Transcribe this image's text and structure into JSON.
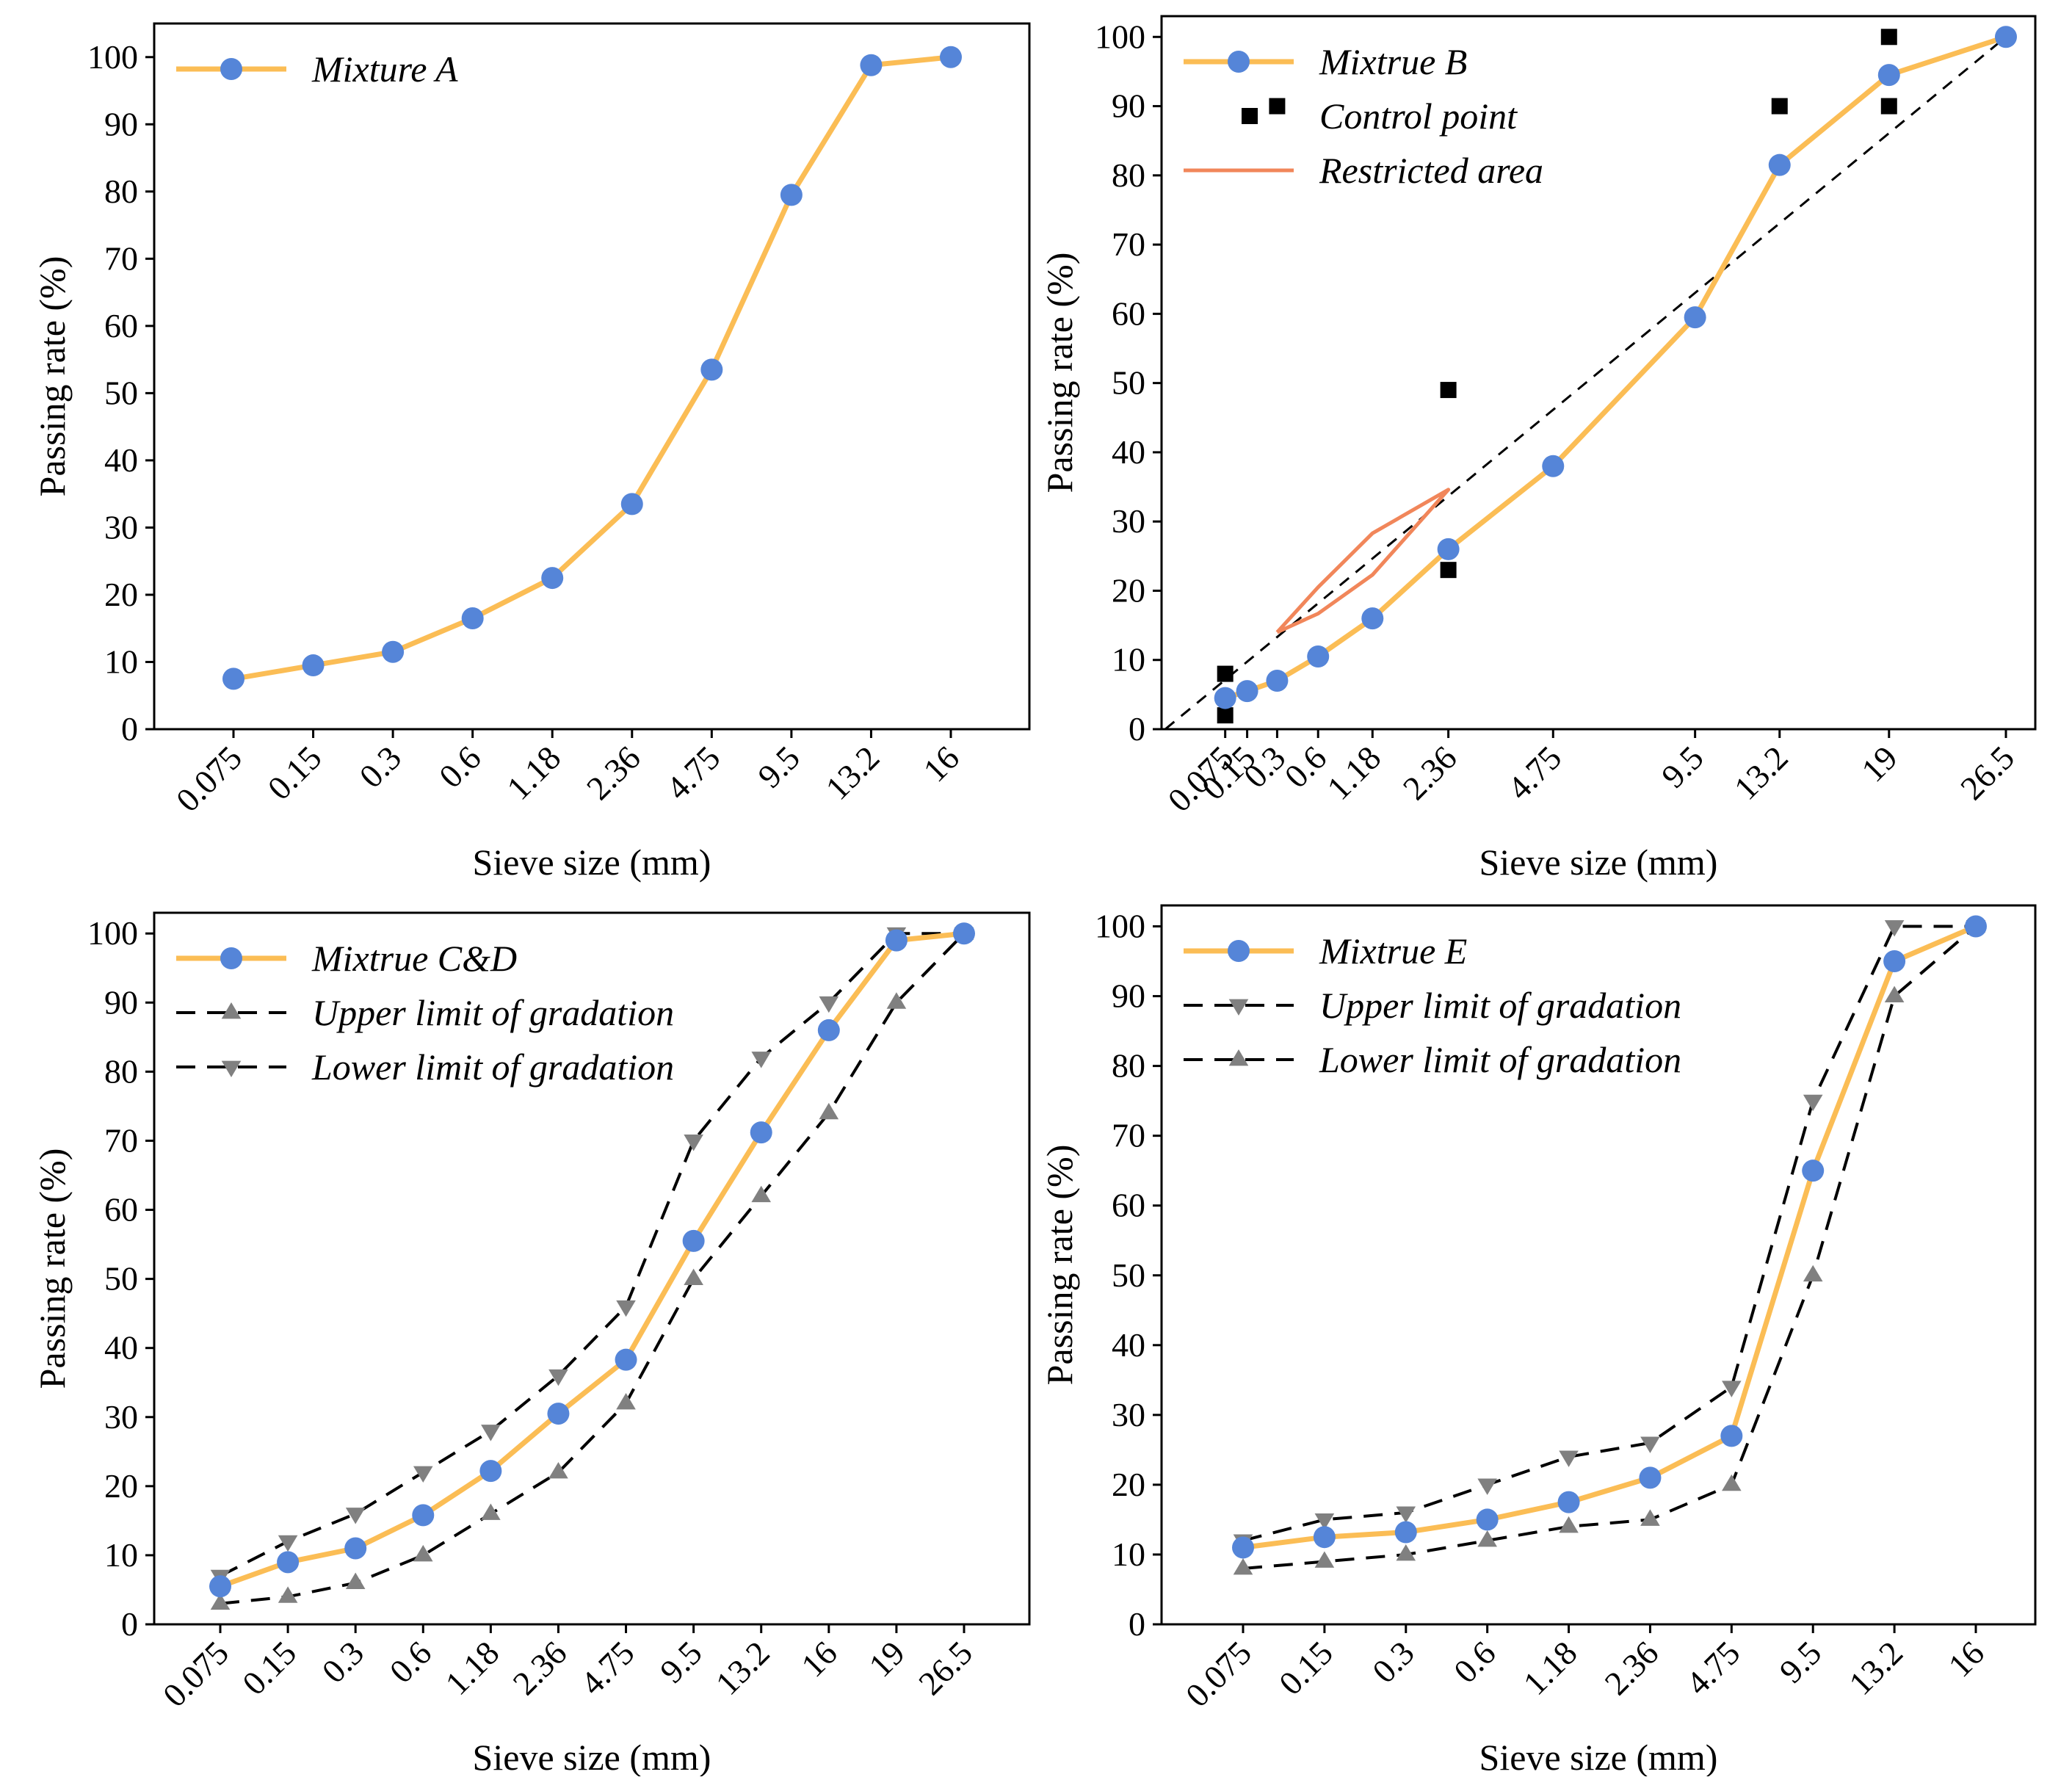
{
  "chart_data": [
    {
      "id": "panel-a",
      "type": "line",
      "x_scale": "categorical",
      "categories": [
        "0.075",
        "0.15",
        "0.3",
        "0.6",
        "1.18",
        "2.36",
        "4.75",
        "9.5",
        "13.2",
        "16"
      ],
      "xlabel": "Sieve size (mm)",
      "ylabel": "Passing rate (%)",
      "ylim": [
        0,
        105
      ],
      "yticks": [
        0,
        10,
        20,
        30,
        40,
        50,
        60,
        70,
        80,
        90,
        100
      ],
      "legend_position": "top-left",
      "series": [
        {
          "name": "Mixture A",
          "style": "mixture",
          "values": [
            7.5,
            9.5,
            11.5,
            16.5,
            22.5,
            33.5,
            53.5,
            79.5,
            98.8,
            100
          ]
        }
      ]
    },
    {
      "id": "panel-b",
      "type": "line",
      "x_scale": "power045",
      "x_values": [
        0.075,
        0.15,
        0.3,
        0.6,
        1.18,
        2.36,
        4.75,
        9.5,
        13.2,
        19,
        26.5
      ],
      "tick_labels": [
        "0.075",
        "0.15",
        "0.3",
        "0.6",
        "1.18",
        "2.36",
        "4.75",
        "9.5",
        "13.2",
        "19",
        "26.5"
      ],
      "xlabel": "Sieve size (mm)",
      "ylabel": "Passing rate (%)",
      "ylim": [
        0,
        103
      ],
      "yticks": [
        0,
        10,
        20,
        30,
        40,
        50,
        60,
        70,
        80,
        90,
        100
      ],
      "legend_position": "top-left",
      "series": [
        {
          "name": "Mixtrue B",
          "style": "mixture",
          "x": [
            0.075,
            0.15,
            0.3,
            0.6,
            1.18,
            2.36,
            4.75,
            9.5,
            13.2,
            19,
            26.5
          ],
          "values": [
            4.5,
            5.5,
            7,
            10.5,
            16,
            26,
            38,
            59.5,
            81.5,
            94.5,
            100
          ]
        },
        {
          "name": "Control point",
          "style": "control",
          "x": [
            0.075,
            0.075,
            0.3,
            2.36,
            2.36,
            13.2,
            19,
            19
          ],
          "values": [
            2,
            8,
            90,
            23,
            49,
            90,
            90,
            100
          ]
        },
        {
          "name": "Restricted area",
          "style": "restricted",
          "x": [
            0.3,
            0.6,
            1.18,
            2.36,
            1.18,
            0.6,
            0.3
          ],
          "values": [
            14,
            20.5,
            28.3,
            34.6,
            22.3,
            16.7,
            14
          ]
        },
        {
          "name": "Maximum density line",
          "style": "maxdensity",
          "legend": false,
          "x": [
            0,
            26.5
          ],
          "values": [
            0,
            100
          ]
        }
      ]
    },
    {
      "id": "panel-c",
      "type": "line",
      "x_scale": "categorical",
      "categories": [
        "0.075",
        "0.15",
        "0.3",
        "0.6",
        "1.18",
        "2.36",
        "4.75",
        "9.5",
        "13.2",
        "16",
        "19",
        "26.5"
      ],
      "xlabel": "Sieve size (mm)",
      "ylabel": "Passing rate (%)",
      "ylim": [
        0,
        103
      ],
      "yticks": [
        0,
        10,
        20,
        30,
        40,
        50,
        60,
        70,
        80,
        90,
        100
      ],
      "legend_position": "top-left",
      "series": [
        {
          "name": "Mixtrue C&D",
          "style": "mixture",
          "values": [
            5.5,
            9,
            11,
            15.8,
            22.2,
            30.5,
            38.3,
            55.5,
            71.2,
            86,
            99,
            100
          ]
        },
        {
          "name": "Upper limit of gradation",
          "style": "limit",
          "marker": "triangle-up",
          "values": [
            3,
            4,
            6,
            10,
            16,
            22,
            32,
            50,
            62,
            74,
            90,
            100
          ]
        },
        {
          "name": "Lower limit of gradation",
          "style": "limit",
          "marker": "triangle-down",
          "values": [
            7,
            12,
            16,
            22,
            28,
            36,
            46,
            70,
            82,
            90,
            100,
            100
          ]
        }
      ]
    },
    {
      "id": "panel-e",
      "type": "line",
      "x_scale": "categorical",
      "categories": [
        "0.075",
        "0.15",
        "0.3",
        "0.6",
        "1.18",
        "2.36",
        "4.75",
        "9.5",
        "13.2",
        "16"
      ],
      "xlabel": "Sieve size (mm)",
      "ylabel": "Passing rate (%)",
      "ylim": [
        0,
        103
      ],
      "yticks": [
        0,
        10,
        20,
        30,
        40,
        50,
        60,
        70,
        80,
        90,
        100
      ],
      "legend_position": "top-left",
      "series": [
        {
          "name": "Mixtrue E",
          "style": "mixture",
          "values": [
            11,
            12.5,
            13.2,
            15,
            17.5,
            21,
            27,
            65,
            95,
            100
          ]
        },
        {
          "name": "Upper limit of gradation",
          "style": "limit",
          "marker": "triangle-down",
          "values": [
            12,
            15,
            16,
            20,
            24,
            26,
            34,
            75,
            100,
            100
          ]
        },
        {
          "name": "Lower limit of gradation",
          "style": "limit",
          "marker": "triangle-up",
          "values": [
            8,
            9,
            10,
            12,
            14,
            15,
            20,
            50,
            90,
            100
          ]
        }
      ]
    }
  ],
  "colors": {
    "mixture_line": "#fbbd55",
    "mixture_marker": "#5585d8",
    "limit_marker": "#808080",
    "limit_line": "#000000",
    "control_marker": "#000000",
    "restricted_line": "#f1865a",
    "axis": "#000000"
  }
}
